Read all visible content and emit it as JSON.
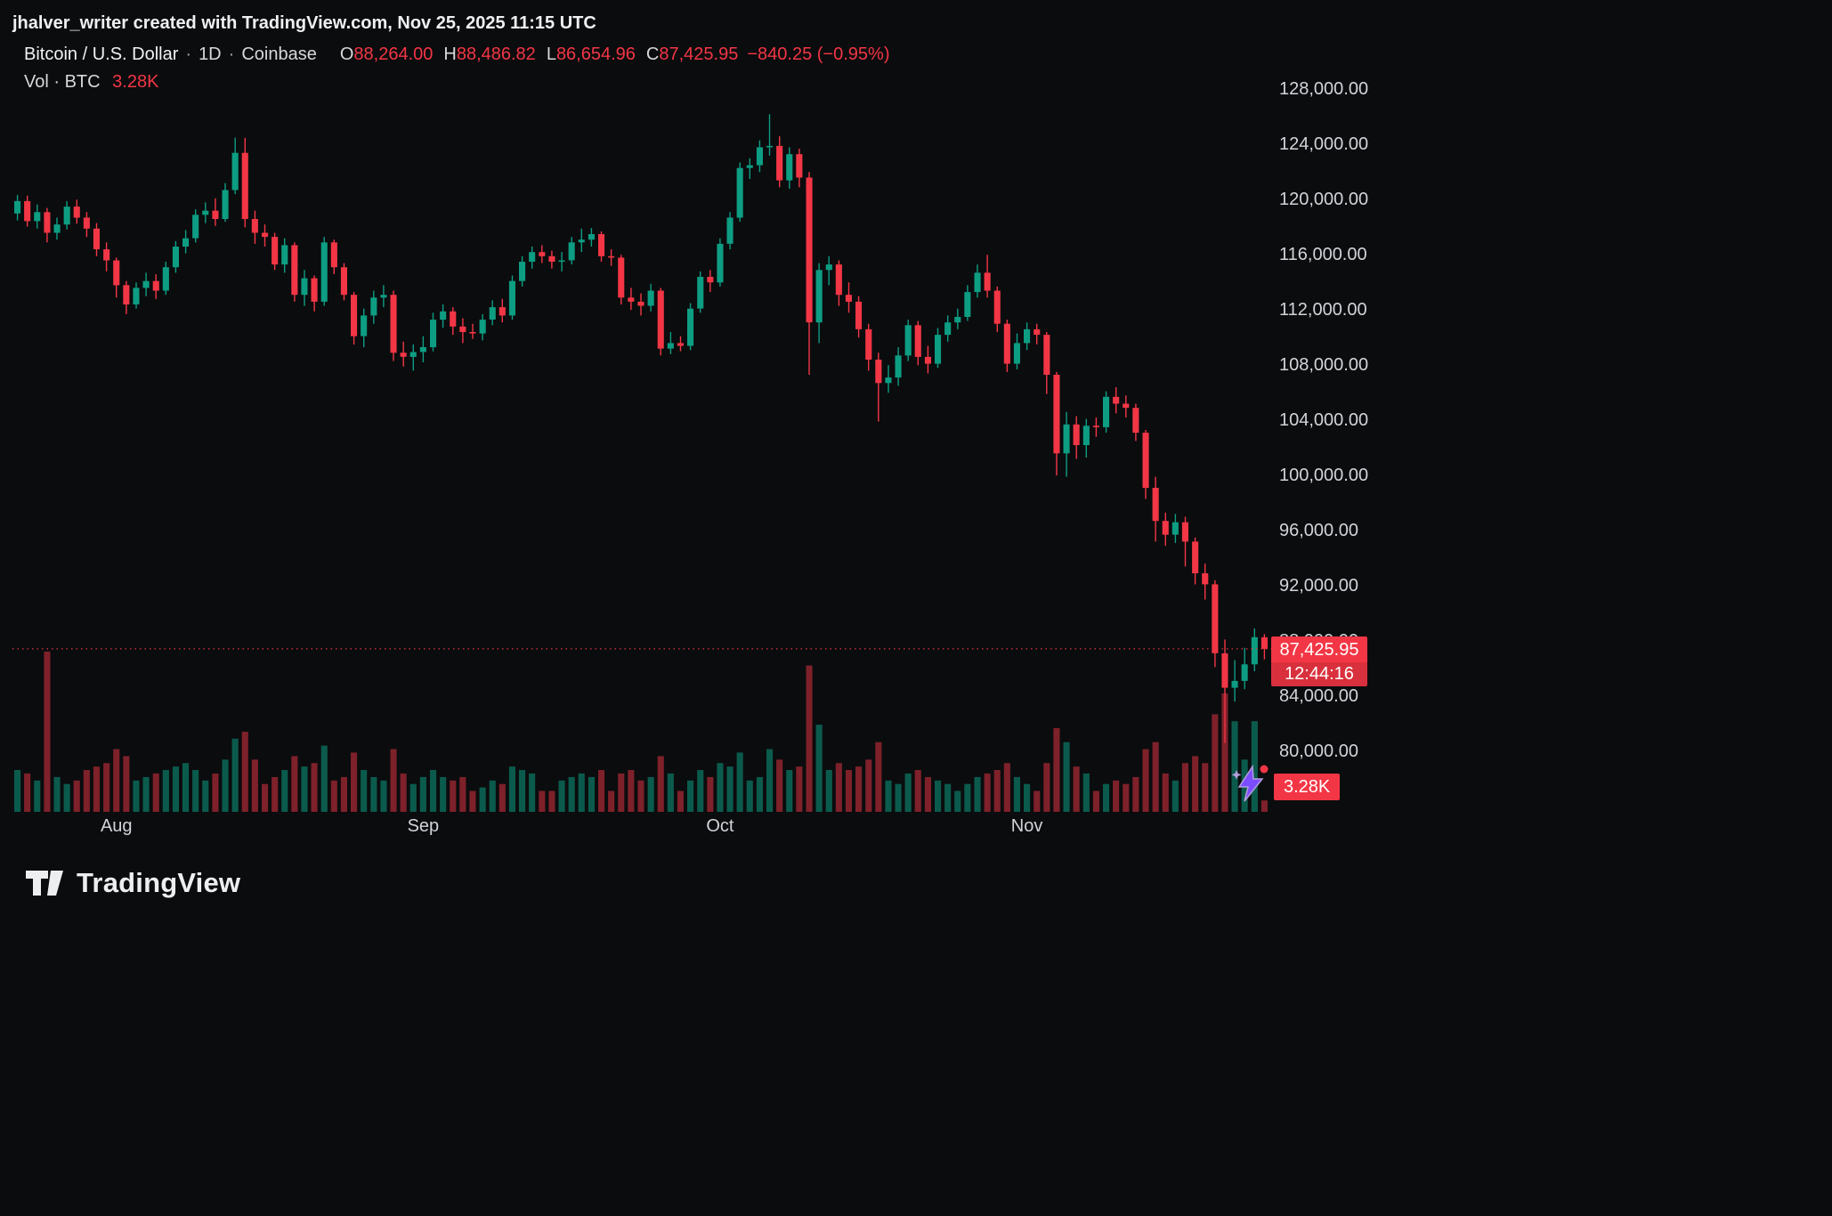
{
  "attribution": "jhalver_writer created with TradingView.com, Nov 25, 2025 11:15 UTC",
  "header": {
    "symbol": "Bitcoin / U.S. Dollar",
    "separator": "·",
    "interval": "1D",
    "exchange": "Coinbase",
    "ohlc": {
      "o_label": "O",
      "o": "88,264.00",
      "h_label": "H",
      "h": "88,486.82",
      "l_label": "L",
      "l": "86,654.96",
      "c_label": "C",
      "c": "87,425.95"
    },
    "change_text": "−840.25 (−0.95%)",
    "vol_label": "Vol · BTC",
    "vol_value": "3.28K"
  },
  "price_scale": {
    "ticks": [
      128000,
      124000,
      120000,
      116000,
      112000,
      108000,
      104000,
      100000,
      96000,
      92000,
      88000,
      84000,
      80000
    ]
  },
  "time_scale": {
    "labels": [
      "Aug",
      "Sep",
      "Oct",
      "Nov"
    ]
  },
  "price_label": {
    "value": "87,425.95",
    "countdown": "12:44:16"
  },
  "volume_label": "3.28K",
  "footer": {
    "brand": "TradingView"
  },
  "colors": {
    "up": "#0d9d82",
    "down": "#f23645",
    "vol_up": "rgba(13,157,130,0.55)",
    "vol_down": "rgba(242,54,69,0.5)",
    "text": "#d6d8db",
    "badge_bg": "#f23645",
    "boost_purple": "#7c4dff"
  },
  "chart_data": {
    "type": "candlestick",
    "title": "Bitcoin / U.S. Dollar",
    "exchange": "Coinbase",
    "interval": "1D",
    "volume_unit": "K BTC",
    "grid": false,
    "ylim": [
      75600,
      131900
    ],
    "y_tick_step": 4000,
    "last_price": 87425.95,
    "change": -840.25,
    "change_pct": -0.95,
    "current_volume_k": 3.28,
    "volume_scale_max_k": 47,
    "columns": [
      "date",
      "open",
      "high",
      "low",
      "close",
      "volume_k_btc"
    ],
    "candles": [
      [
        "2025-07-22",
        119000,
        120350,
        118500,
        119900,
        12
      ],
      [
        "2025-07-23",
        119900,
        120300,
        118050,
        118450,
        11
      ],
      [
        "2025-07-24",
        118450,
        119650,
        117900,
        119100,
        9
      ],
      [
        "2025-07-25",
        119100,
        119400,
        116900,
        117600,
        46
      ],
      [
        "2025-07-26",
        117600,
        118700,
        117100,
        118200,
        10
      ],
      [
        "2025-07-27",
        118200,
        119900,
        117850,
        119500,
        8
      ],
      [
        "2025-07-28",
        119500,
        120000,
        118250,
        118700,
        9
      ],
      [
        "2025-07-29",
        118700,
        119100,
        117300,
        117900,
        12
      ],
      [
        "2025-07-30",
        117900,
        118300,
        115900,
        116400,
        13
      ],
      [
        "2025-07-31",
        116400,
        116900,
        114800,
        115600,
        14
      ],
      [
        "2025-08-01",
        115600,
        115800,
        112900,
        113800,
        18
      ],
      [
        "2025-08-02",
        113800,
        114100,
        111700,
        112400,
        16
      ],
      [
        "2025-08-03",
        112400,
        114000,
        112100,
        113600,
        9
      ],
      [
        "2025-08-04",
        113600,
        114700,
        113000,
        114100,
        10
      ],
      [
        "2025-08-05",
        114100,
        114600,
        112800,
        113400,
        11
      ],
      [
        "2025-08-06",
        113400,
        115500,
        113100,
        115100,
        12
      ],
      [
        "2025-08-07",
        115100,
        117000,
        114700,
        116600,
        13
      ],
      [
        "2025-08-08",
        116600,
        117800,
        116100,
        117200,
        14
      ],
      [
        "2025-08-09",
        117200,
        119300,
        116900,
        118900,
        12
      ],
      [
        "2025-08-10",
        118900,
        119800,
        118300,
        119200,
        9
      ],
      [
        "2025-08-11",
        119200,
        120100,
        118100,
        118600,
        11
      ],
      [
        "2025-08-12",
        118600,
        121200,
        118400,
        120700,
        15
      ],
      [
        "2025-08-13",
        120700,
        124500,
        120400,
        123400,
        21
      ],
      [
        "2025-08-14",
        123400,
        124480,
        118000,
        118600,
        23
      ],
      [
        "2025-08-15",
        118600,
        119200,
        116800,
        117600,
        15
      ],
      [
        "2025-08-16",
        117600,
        118200,
        116600,
        117300,
        8
      ],
      [
        "2025-08-17",
        117300,
        117600,
        114900,
        115300,
        10
      ],
      [
        "2025-08-18",
        115300,
        117200,
        114700,
        116700,
        12
      ],
      [
        "2025-08-19",
        116700,
        116900,
        112600,
        113100,
        16
      ],
      [
        "2025-08-20",
        113100,
        114900,
        112300,
        114300,
        13
      ],
      [
        "2025-08-21",
        114300,
        114500,
        111900,
        112600,
        14
      ],
      [
        "2025-08-22",
        112600,
        117300,
        112300,
        116900,
        19
      ],
      [
        "2025-08-23",
        116900,
        117100,
        114600,
        115100,
        9
      ],
      [
        "2025-08-24",
        115100,
        115400,
        112700,
        113100,
        10
      ],
      [
        "2025-08-25",
        113100,
        113300,
        109500,
        110100,
        17
      ],
      [
        "2025-08-26",
        110100,
        112100,
        109300,
        111600,
        12
      ],
      [
        "2025-08-27",
        111600,
        113400,
        111000,
        112900,
        10
      ],
      [
        "2025-08-28",
        112900,
        113800,
        112200,
        113100,
        9
      ],
      [
        "2025-08-29",
        113100,
        113400,
        108300,
        108900,
        18
      ],
      [
        "2025-08-30",
        108900,
        109700,
        107900,
        108600,
        11
      ],
      [
        "2025-08-31",
        108600,
        109500,
        107600,
        108950,
        8
      ],
      [
        "2025-09-01",
        108950,
        110100,
        108200,
        109300,
        10
      ],
      [
        "2025-09-02",
        109300,
        111800,
        109000,
        111300,
        12
      ],
      [
        "2025-09-03",
        111300,
        112400,
        110700,
        111900,
        10
      ],
      [
        "2025-09-04",
        111900,
        112200,
        110200,
        110800,
        9
      ],
      [
        "2025-09-05",
        110800,
        111400,
        109600,
        110400,
        10
      ],
      [
        "2025-09-06",
        110400,
        111000,
        109900,
        110300,
        6
      ],
      [
        "2025-09-07",
        110300,
        111700,
        109800,
        111300,
        7
      ],
      [
        "2025-09-08",
        111300,
        112700,
        110900,
        112200,
        9
      ],
      [
        "2025-09-09",
        112200,
        112800,
        111100,
        111600,
        8
      ],
      [
        "2025-09-10",
        111600,
        114500,
        111300,
        114100,
        13
      ],
      [
        "2025-09-11",
        114100,
        115900,
        113700,
        115500,
        12
      ],
      [
        "2025-09-12",
        115500,
        116600,
        115000,
        116200,
        11
      ],
      [
        "2025-09-13",
        116200,
        116700,
        115400,
        115900,
        6
      ],
      [
        "2025-09-14",
        115900,
        116300,
        115000,
        115500,
        6
      ],
      [
        "2025-09-15",
        115500,
        116200,
        114800,
        115600,
        9
      ],
      [
        "2025-09-16",
        115600,
        117300,
        115300,
        116900,
        10
      ],
      [
        "2025-09-17",
        116900,
        117900,
        116200,
        117100,
        11
      ],
      [
        "2025-09-18",
        117100,
        117950,
        116600,
        117500,
        10
      ],
      [
        "2025-09-19",
        117500,
        117700,
        115500,
        115900,
        12
      ],
      [
        "2025-09-20",
        115900,
        116400,
        115200,
        115800,
        6
      ],
      [
        "2025-09-21",
        115800,
        116000,
        112400,
        112900,
        11
      ],
      [
        "2025-09-22",
        112900,
        113600,
        112000,
        112600,
        12
      ],
      [
        "2025-09-23",
        112600,
        113200,
        111600,
        112300,
        9
      ],
      [
        "2025-09-24",
        112300,
        113900,
        111900,
        113400,
        10
      ],
      [
        "2025-09-25",
        113400,
        113600,
        108700,
        109200,
        16
      ],
      [
        "2025-09-26",
        109200,
        110400,
        108800,
        109600,
        11
      ],
      [
        "2025-09-27",
        109600,
        110100,
        109000,
        109400,
        6
      ],
      [
        "2025-09-28",
        109400,
        112500,
        109100,
        112100,
        9
      ],
      [
        "2025-09-29",
        112100,
        114800,
        111800,
        114400,
        12
      ],
      [
        "2025-09-30",
        114400,
        114900,
        113300,
        114000,
        10
      ],
      [
        "2025-10-01",
        114000,
        117200,
        113700,
        116800,
        14
      ],
      [
        "2025-10-02",
        116800,
        119100,
        116400,
        118700,
        13
      ],
      [
        "2025-10-03",
        118700,
        122700,
        118400,
        122300,
        17
      ],
      [
        "2025-10-04",
        122300,
        123000,
        121500,
        122500,
        9
      ],
      [
        "2025-10-05",
        122500,
        124300,
        122000,
        123800,
        10
      ],
      [
        "2025-10-06",
        123800,
        126200,
        123200,
        123900,
        18
      ],
      [
        "2025-10-07",
        123900,
        124600,
        120900,
        121400,
        15
      ],
      [
        "2025-10-08",
        121400,
        123800,
        120800,
        123300,
        12
      ],
      [
        "2025-10-09",
        123300,
        123700,
        120900,
        121600,
        13
      ],
      [
        "2025-10-10",
        121600,
        122000,
        107300,
        111100,
        42
      ],
      [
        "2025-10-11",
        111100,
        115400,
        109600,
        114900,
        25
      ],
      [
        "2025-10-12",
        114900,
        115900,
        113800,
        115300,
        12
      ],
      [
        "2025-10-13",
        115300,
        115600,
        112300,
        113100,
        14
      ],
      [
        "2025-10-14",
        113100,
        114000,
        111800,
        112600,
        12
      ],
      [
        "2025-10-15",
        112600,
        113000,
        110000,
        110600,
        13
      ],
      [
        "2025-10-16",
        110600,
        111000,
        107600,
        108400,
        15
      ],
      [
        "2025-10-17",
        108400,
        108900,
        103900,
        106700,
        20
      ],
      [
        "2025-10-18",
        106700,
        108000,
        106000,
        107100,
        9
      ],
      [
        "2025-10-19",
        107100,
        109300,
        106500,
        108700,
        8
      ],
      [
        "2025-10-20",
        108700,
        111300,
        108300,
        110900,
        11
      ],
      [
        "2025-10-21",
        110900,
        111200,
        108000,
        108600,
        12
      ],
      [
        "2025-10-22",
        108600,
        109400,
        107400,
        108100,
        10
      ],
      [
        "2025-10-23",
        108100,
        110700,
        107800,
        110200,
        9
      ],
      [
        "2025-10-24",
        110200,
        111600,
        109700,
        111100,
        8
      ],
      [
        "2025-10-25",
        111100,
        112100,
        110600,
        111500,
        6
      ],
      [
        "2025-10-26",
        111500,
        113800,
        111200,
        113300,
        8
      ],
      [
        "2025-10-27",
        113300,
        115300,
        112900,
        114700,
        10
      ],
      [
        "2025-10-28",
        114700,
        116000,
        112900,
        113400,
        11
      ],
      [
        "2025-10-29",
        113400,
        113700,
        110400,
        111000,
        12
      ],
      [
        "2025-10-30",
        111000,
        111300,
        107500,
        108100,
        14
      ],
      [
        "2025-10-31",
        108100,
        110300,
        107700,
        109600,
        10
      ],
      [
        "2025-11-01",
        109600,
        111100,
        109100,
        110600,
        8
      ],
      [
        "2025-11-02",
        110600,
        111000,
        109500,
        110200,
        6
      ],
      [
        "2025-11-03",
        110200,
        110400,
        105900,
        107300,
        14
      ],
      [
        "2025-11-04",
        107300,
        107500,
        100000,
        101600,
        24
      ],
      [
        "2025-11-05",
        101600,
        104600,
        99900,
        103700,
        20
      ],
      [
        "2025-11-06",
        103700,
        104300,
        101200,
        102200,
        13
      ],
      [
        "2025-11-07",
        102200,
        104100,
        101300,
        103600,
        11
      ],
      [
        "2025-11-08",
        103600,
        104200,
        102800,
        103500,
        6
      ],
      [
        "2025-11-09",
        103500,
        106100,
        103100,
        105700,
        8
      ],
      [
        "2025-11-10",
        105700,
        106400,
        104500,
        105200,
        9
      ],
      [
        "2025-11-11",
        105200,
        105800,
        104200,
        104900,
        8
      ],
      [
        "2025-11-12",
        104900,
        105200,
        102500,
        103100,
        10
      ],
      [
        "2025-11-13",
        103100,
        103300,
        98300,
        99100,
        18
      ],
      [
        "2025-11-14",
        99100,
        99900,
        95200,
        96700,
        20
      ],
      [
        "2025-11-15",
        96700,
        97300,
        94900,
        95700,
        11
      ],
      [
        "2025-11-16",
        95700,
        97200,
        95100,
        96600,
        9
      ],
      [
        "2025-11-17",
        96600,
        97000,
        93400,
        95200,
        14
      ],
      [
        "2025-11-18",
        95200,
        95500,
        92100,
        92900,
        16
      ],
      [
        "2025-11-19",
        92900,
        93600,
        91000,
        92100,
        14
      ],
      [
        "2025-11-20",
        92100,
        92400,
        86100,
        87100,
        28
      ],
      [
        "2025-11-21",
        87100,
        88100,
        80600,
        84600,
        34
      ],
      [
        "2025-11-22",
        84600,
        86600,
        83600,
        85100,
        26
      ],
      [
        "2025-11-23",
        85100,
        87500,
        84500,
        86300,
        15
      ],
      [
        "2025-11-24",
        86300,
        88900,
        85800,
        88266.2,
        26
      ],
      [
        "2025-11-25",
        88264.0,
        88486.82,
        86654.96,
        87425.95,
        3.28
      ]
    ]
  }
}
